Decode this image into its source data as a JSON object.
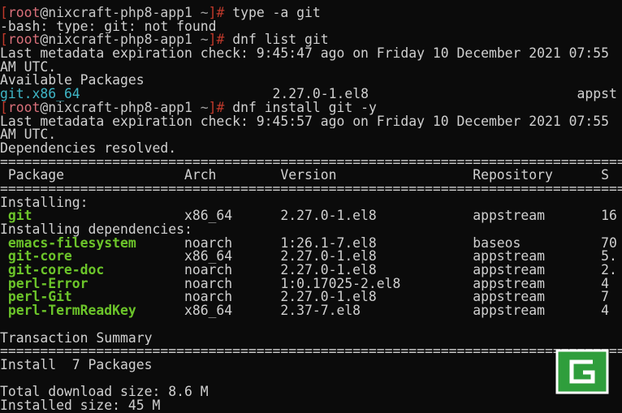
{
  "terminal": {
    "lines": [
      {
        "segments": [
          {
            "text": "[",
            "color": "#c0392b"
          },
          {
            "text": "root",
            "color": "#d9707a"
          },
          {
            "text": "@nixcraft-php8-app1",
            "color": "#c8c8c8"
          },
          {
            "text": " ~",
            "color": "#a0a0a0"
          },
          {
            "text": "]# ",
            "color": "#c0392b"
          },
          {
            "text": "type -a git"
          }
        ]
      },
      {
        "segments": [
          {
            "text": "-bash: type: git: not found"
          }
        ]
      },
      {
        "segments": [
          {
            "text": "[",
            "color": "#c0392b"
          },
          {
            "text": "root",
            "color": "#d9707a"
          },
          {
            "text": "@nixcraft-php8-app1",
            "color": "#c8c8c8"
          },
          {
            "text": " ~",
            "color": "#a0a0a0"
          },
          {
            "text": "]# ",
            "color": "#c0392b"
          },
          {
            "text": "dnf list git"
          }
        ]
      },
      {
        "segments": [
          {
            "text": "Last metadata expiration check: 9:45:47 ago on Friday 10 December 2021 07:55"
          }
        ]
      },
      {
        "segments": [
          {
            "text": "AM UTC."
          }
        ]
      },
      {
        "segments": [
          {
            "text": "Available Packages"
          }
        ]
      },
      {
        "segments": [
          {
            "text": "git.x86_64",
            "color": "#3fb6c6"
          },
          {
            "text": "                        2.27.0-1.el8                          appst"
          }
        ]
      },
      {
        "segments": [
          {
            "text": "[",
            "color": "#c0392b"
          },
          {
            "text": "root",
            "color": "#d9707a"
          },
          {
            "text": "@nixcraft-php8-app1",
            "color": "#c8c8c8"
          },
          {
            "text": " ~",
            "color": "#a0a0a0"
          },
          {
            "text": "]# ",
            "color": "#c0392b"
          },
          {
            "text": "dnf install git -y"
          }
        ]
      },
      {
        "segments": [
          {
            "text": "Last metadata expiration check: 9:45:57 ago on Friday 10 December 2021 07:55"
          }
        ]
      },
      {
        "segments": [
          {
            "text": "AM UTC."
          }
        ]
      },
      {
        "segments": [
          {
            "text": "Dependencies resolved."
          }
        ]
      },
      {
        "segments": [
          {
            "text": "================================================================================"
          }
        ]
      },
      {
        "cells": [
          "Package",
          "Arch",
          "Version",
          "Repository",
          "S"
        ]
      },
      {
        "segments": [
          {
            "text": "================================================================================"
          }
        ]
      },
      {
        "segments": [
          {
            "text": "Installing:"
          }
        ]
      },
      {
        "cells": [
          "git",
          "x86_64",
          "2.27.0-1.el8",
          "appstream",
          "16"
        ],
        "name_color": "#6cc52a"
      },
      {
        "segments": [
          {
            "text": "Installing dependencies:"
          }
        ]
      },
      {
        "cells": [
          "emacs-filesystem",
          "noarch",
          "1:26.1-7.el8",
          "baseos",
          "70"
        ],
        "name_color": "#6cc52a"
      },
      {
        "cells": [
          "git-core",
          "x86_64",
          "2.27.0-1.el8",
          "appstream",
          "5."
        ],
        "name_color": "#6cc52a"
      },
      {
        "cells": [
          "git-core-doc",
          "noarch",
          "2.27.0-1.el8",
          "appstream",
          "2."
        ],
        "name_color": "#6cc52a"
      },
      {
        "cells": [
          "perl-Error",
          "noarch",
          "1:0.17025-2.el8",
          "appstream",
          "4"
        ],
        "name_color": "#6cc52a"
      },
      {
        "cells": [
          "perl-Git",
          "noarch",
          "2.27.0-1.el8",
          "appstream",
          "7"
        ],
        "name_color": "#6cc52a"
      },
      {
        "cells": [
          "perl-TermReadKey",
          "x86_64",
          "2.37-7.el8",
          "appstream",
          "4"
        ],
        "name_color": "#6cc52a"
      },
      {
        "segments": []
      },
      {
        "segments": [
          {
            "text": "Transaction Summary"
          }
        ]
      },
      {
        "segments": [
          {
            "text": "================================================================================"
          }
        ]
      },
      {
        "segments": [
          {
            "text": "Install  7 Packages"
          }
        ]
      },
      {
        "segments": []
      },
      {
        "segments": [
          {
            "text": "Total download size: 8.6 M"
          }
        ]
      },
      {
        "segments": [
          {
            "text": "Installed size: 45 M"
          }
        ]
      }
    ]
  }
}
